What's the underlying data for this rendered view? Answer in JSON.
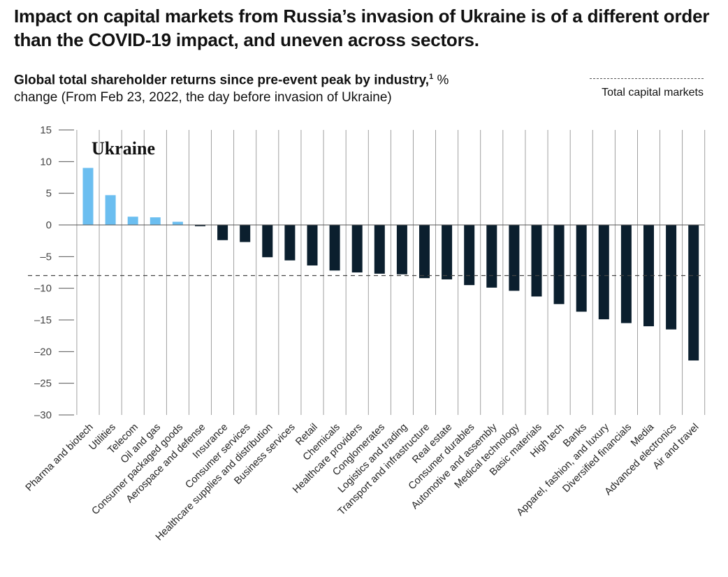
{
  "headline": "Impact on capital markets from Russia’s invasion of Ukraine is of a different order than the COVID-19 impact, and uneven across sectors.",
  "subtitle": {
    "bold": "Global total shareholder returns since pre-event peak by industry,",
    "footnote_marker": "1",
    "unit": " %",
    "rest": "change (From Feb 23, 2022, the day before invasion of Ukraine)"
  },
  "legend": {
    "label": "Total capital markets"
  },
  "colors": {
    "positive": "#6BBEF0",
    "negative": "#0B1F2E",
    "axis": "#555555",
    "gridline": "#888888",
    "reference": "#444444"
  },
  "chart_data": {
    "type": "bar",
    "panel_label": "Ukraine",
    "categories": [
      "Pharma and biotech",
      "Utilities",
      "Telecom",
      "Oil and gas",
      "Consumer packaged goods",
      "Aerospace and defense",
      "Insurance",
      "Consumer services",
      "Healthcare supplies and distribution",
      "Business services",
      "Retail",
      "Chemicals",
      "Healthcare providers",
      "Conglomerates",
      "Logistics and trading",
      "Transport and infrastructure",
      "Real estate",
      "Consumer durables",
      "Automotive and assembly",
      "Medical technology",
      "Basic materials",
      "High tech",
      "Banks",
      "Apparel, fashion, and luxury",
      "Diversified financials",
      "Media",
      "Advanced electronics",
      "Air and travel"
    ],
    "values": [
      9.0,
      4.7,
      1.3,
      1.2,
      0.5,
      -0.2,
      -2.4,
      -2.7,
      -5.1,
      -5.6,
      -6.4,
      -7.2,
      -7.5,
      -7.7,
      -7.8,
      -8.4,
      -8.6,
      -9.5,
      -9.9,
      -10.4,
      -11.3,
      -12.5,
      -13.7,
      -14.9,
      -15.5,
      -16.0,
      -16.5,
      -21.4
    ],
    "reference_line": {
      "name": "Total capital markets",
      "value": -8.0
    },
    "ylim": [
      -30,
      15
    ],
    "yticks": [
      15,
      10,
      5,
      0,
      -5,
      -10,
      -15,
      -20,
      -25,
      -30
    ],
    "ytick_labels": [
      "15",
      "10",
      "5",
      "0",
      "–5",
      "–10",
      "–15",
      "–20",
      "–25",
      "–30"
    ],
    "xlabel": "",
    "ylabel": "",
    "grid": "vertical lines between categories"
  }
}
